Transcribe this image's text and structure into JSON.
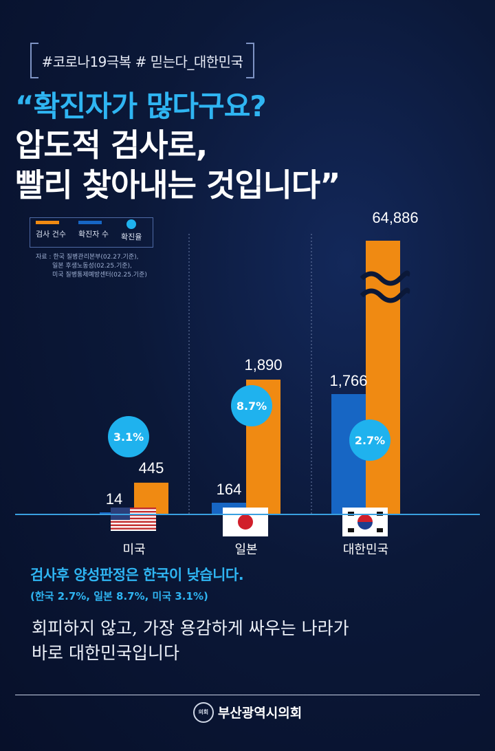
{
  "hashtag": "#코로나19극복 # 믿는다_대한민국",
  "headline": {
    "line1": "“확진자가 많다구요?",
    "line2": "압도적 검사로,",
    "line3": "빨리 찾아내는 것입니다",
    "close_quote": "”"
  },
  "legend": {
    "tests": "검사 건수",
    "cases": "확진자 수",
    "rate": "확진율"
  },
  "source": {
    "line1": "자료 : 한국 질병관리본부(02.27.기준),",
    "line2": "일본 후생노동성(02.25.기준),",
    "line3": "미국 질병통제예방센터(02.25.기준)"
  },
  "colors": {
    "tests": "#f08a12",
    "cases": "#1766c4",
    "rate": "#1fb2ee",
    "accent": "#2fb5f2"
  },
  "chart_data": {
    "type": "bar",
    "categories": [
      "미국",
      "일본",
      "대한민국"
    ],
    "flags": [
      "us-flag",
      "japan-flag",
      "korea-flag"
    ],
    "series": [
      {
        "name": "확진자 수",
        "values": [
          14,
          164,
          1766
        ],
        "labels": [
          "14",
          "164",
          "1,766"
        ]
      },
      {
        "name": "검사 건수",
        "values": [
          445,
          1890,
          64886
        ],
        "labels": [
          "445",
          "1,890",
          "64,886"
        ]
      }
    ],
    "rates": {
      "name": "확진율",
      "values": [
        3.1,
        8.7,
        2.7
      ],
      "labels": [
        "3.1%",
        "8.7%",
        "2.7%"
      ]
    },
    "axis_break": "대한민국 검사 건수"
  },
  "summary": {
    "positive": "검사후 양성판정은 한국이 낮습니다.",
    "rates": "(한국 2.7%, 일본 8.7%, 미국 3.1%)"
  },
  "message": {
    "line1": "회피하지 않고, 가장 용감하게 싸우는 나라가",
    "line2": "바로 대한민국입니다"
  },
  "footer": {
    "seal": "의회",
    "org": "부산광역시의회"
  }
}
